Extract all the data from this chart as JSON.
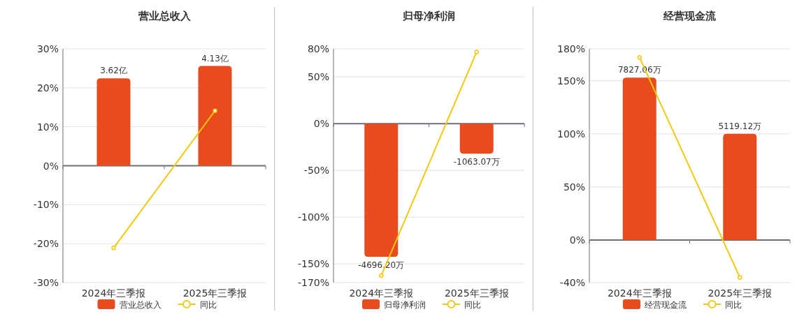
{
  "chart_data": [
    {
      "type": "bar",
      "title": "营业总收入",
      "categories": [
        "2024年三季报",
        "2025年三季报"
      ],
      "series": [
        {
          "name": "营业总收入",
          "color": "#e84c1e",
          "axis": "y2",
          "values": [
            3.62,
            4.13
          ],
          "value_labels": [
            "3.62亿",
            "4.13亿"
          ]
        },
        {
          "name": "同比",
          "type": "line",
          "color": "#f2c811",
          "marker": "circle",
          "values": [
            -21.1,
            14.1
          ]
        }
      ],
      "ylim": [
        -30,
        30
      ],
      "yticks": [
        {
          "value": -30,
          "label": "-30%"
        },
        {
          "value": -20,
          "label": "-20%"
        },
        {
          "value": -10,
          "label": "-10%"
        },
        {
          "value": 0,
          "label": "0%"
        },
        {
          "value": 10,
          "label": "10%"
        },
        {
          "value": 20,
          "label": "20%"
        },
        {
          "value": 30,
          "label": "30%"
        }
      ],
      "y2lim": [
        -4.84,
        4.84
      ],
      "grid": "y",
      "legend": "bottom"
    },
    {
      "type": "bar",
      "title": "归母净利润",
      "categories": [
        "2024年三季报",
        "2025年三季报"
      ],
      "series": [
        {
          "name": "归母净利润",
          "color": "#e84c1e",
          "axis": "y2",
          "values": [
            -4696.2,
            -1063.07
          ],
          "value_labels": [
            "-4696.20万",
            "-1063.07万"
          ]
        },
        {
          "name": "同比",
          "type": "line",
          "color": "#f2c811",
          "marker": "circle",
          "values": [
            -162.6,
            76.7
          ]
        }
      ],
      "ylim": [
        -170,
        80
      ],
      "yticks": [
        {
          "value": -170,
          "label": "-170%"
        },
        {
          "value": -150,
          "label": "-150%"
        },
        {
          "value": -100,
          "label": "-100%"
        },
        {
          "value": -50,
          "label": "-50%"
        },
        {
          "value": 0,
          "label": "0%"
        },
        {
          "value": 50,
          "label": "50%"
        },
        {
          "value": 80,
          "label": "80%"
        }
      ],
      "y2lim": [
        -5610,
        2640
      ],
      "grid": "y",
      "legend": "bottom"
    },
    {
      "type": "bar",
      "title": "经营现金流",
      "categories": [
        "2024年三季报",
        "2025年三季报"
      ],
      "series": [
        {
          "name": "经营现金流",
          "color": "#e84c1e",
          "axis": "y2",
          "values": [
            7827.06,
            5119.12
          ],
          "value_labels": [
            "7827.06万",
            "5119.12万"
          ]
        },
        {
          "name": "同比",
          "type": "line",
          "color": "#f2c811",
          "marker": "circle",
          "values": [
            171.9,
            -35.2
          ]
        }
      ],
      "ylim": [
        -40,
        180
      ],
      "yticks": [
        {
          "value": -40,
          "label": "-40%"
        },
        {
          "value": 0,
          "label": "0%"
        },
        {
          "value": 50,
          "label": "50%"
        },
        {
          "value": 100,
          "label": "100%"
        },
        {
          "value": 150,
          "label": "150%"
        },
        {
          "value": 180,
          "label": "180%"
        }
      ],
      "y2lim": [
        -2046,
        9209
      ],
      "grid": "y",
      "legend": "bottom"
    }
  ]
}
